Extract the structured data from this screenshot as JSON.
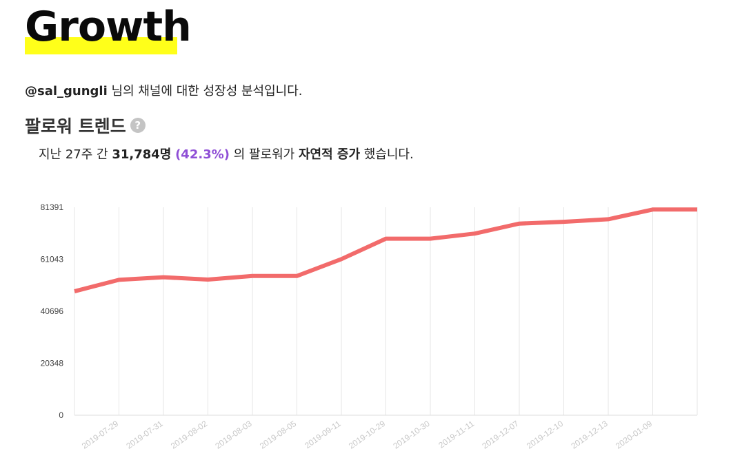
{
  "header": {
    "title": "Growth",
    "handle": "@sal_gungli",
    "intro_suffix": " 님의 채널에 대한 성장성 분석입니다."
  },
  "section": {
    "title": "팔로워 트렌드",
    "help_icon": "question-icon",
    "help_glyph": "?"
  },
  "summary": {
    "prefix": "지난 27주 간 ",
    "count": "31,784명",
    "pct": "(42.3%)",
    "middle": " 의 팔로워가 ",
    "kind": "자연적 증가",
    "suffix": " 했습니다."
  },
  "chart_data": {
    "type": "line",
    "title": "",
    "xlabel": "",
    "ylabel": "",
    "ylim": [
      0,
      81391
    ],
    "yticks": [
      "0",
      "20348",
      "40696",
      "61043",
      "81391"
    ],
    "tick_labels": [
      "2019-07-29",
      "2019-07-31",
      "2019-08-02",
      "2019-08-03",
      "2019-08-05",
      "2019-09-11",
      "2019-10-29",
      "2019-10-30",
      "2019-11-11",
      "2019-12-07",
      "2019-12-10",
      "2019-12-13",
      "2020-01-09"
    ],
    "x": [
      "",
      "2019-07-29",
      "2019-07-31",
      "2019-08-02",
      "2019-08-03",
      "2019-08-05",
      "2019-09-11",
      "2019-10-29",
      "2019-10-30",
      "2019-11-11",
      "2019-12-07",
      "2019-12-10",
      "2019-12-13",
      "2020-01-09",
      ""
    ],
    "series": [
      {
        "color": "#f26b6b",
        "values": [
          48500,
          53000,
          54000,
          53100,
          54500,
          54500,
          61100,
          69100,
          69100,
          71100,
          75000,
          75700,
          76700,
          80500,
          80500
        ]
      }
    ],
    "grid": true
  }
}
